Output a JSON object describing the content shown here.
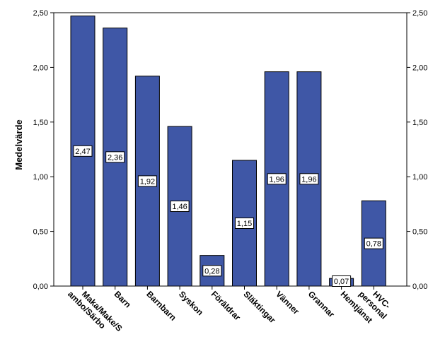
{
  "chart_data": {
    "type": "bar",
    "categories": [
      [
        "Maka/Make/S",
        "ambo/Särbo"
      ],
      [
        "Barn"
      ],
      [
        "Barnbarn"
      ],
      [
        "Syskon"
      ],
      [
        "Föräldrar"
      ],
      [
        "Släktingar"
      ],
      [
        "Vänner"
      ],
      [
        "Grannar"
      ],
      [
        "Hemtjänst"
      ],
      [
        "HVC-",
        "personal"
      ]
    ],
    "values": [
      2.47,
      2.36,
      1.92,
      1.46,
      0.28,
      1.15,
      1.96,
      1.96,
      0.07,
      0.78
    ],
    "data_labels": [
      "2,47",
      "2,36",
      "1,92",
      "1,46",
      "0,28",
      "1,15",
      "1,96",
      "1,96",
      "0,07",
      "0,78"
    ],
    "title": "",
    "xlabel": "",
    "ylabel": "Medelvärde",
    "ylim": [
      0,
      2.5
    ],
    "yticks": [
      0,
      0.5,
      1.0,
      1.5,
      2.0,
      2.5
    ],
    "ytick_labels": [
      "0,00",
      "0,50",
      "1,00",
      "1,50",
      "2,00",
      "2,50"
    ],
    "secondary_y_axis": true,
    "grid": false,
    "legend": "none",
    "bar_color": "#3F57A6",
    "bar_edge_color": "#000000"
  }
}
